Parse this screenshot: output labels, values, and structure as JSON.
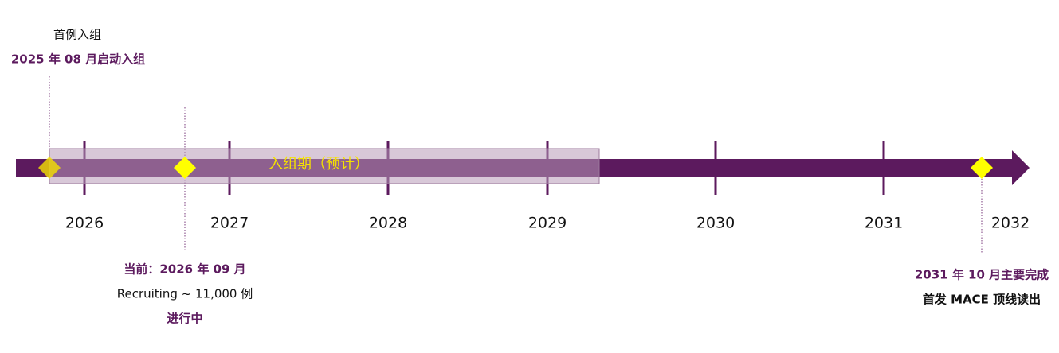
{
  "milestones": [
    {
      "caption": "首例入组",
      "date": "2025 年 08 月启动入组"
    },
    {
      "date": "当前：2026 年 09 月",
      "detail": "Recruiting ~ 11,000 例",
      "status": "进行中"
    },
    {
      "date": "2031 年 10 月主要完成",
      "detail": "首发 MACE 顶线读出"
    }
  ],
  "band_label": "入组期（预计）",
  "years": [
    "2026",
    "2027",
    "2028",
    "2029",
    "2030",
    "2031",
    "2032"
  ]
}
